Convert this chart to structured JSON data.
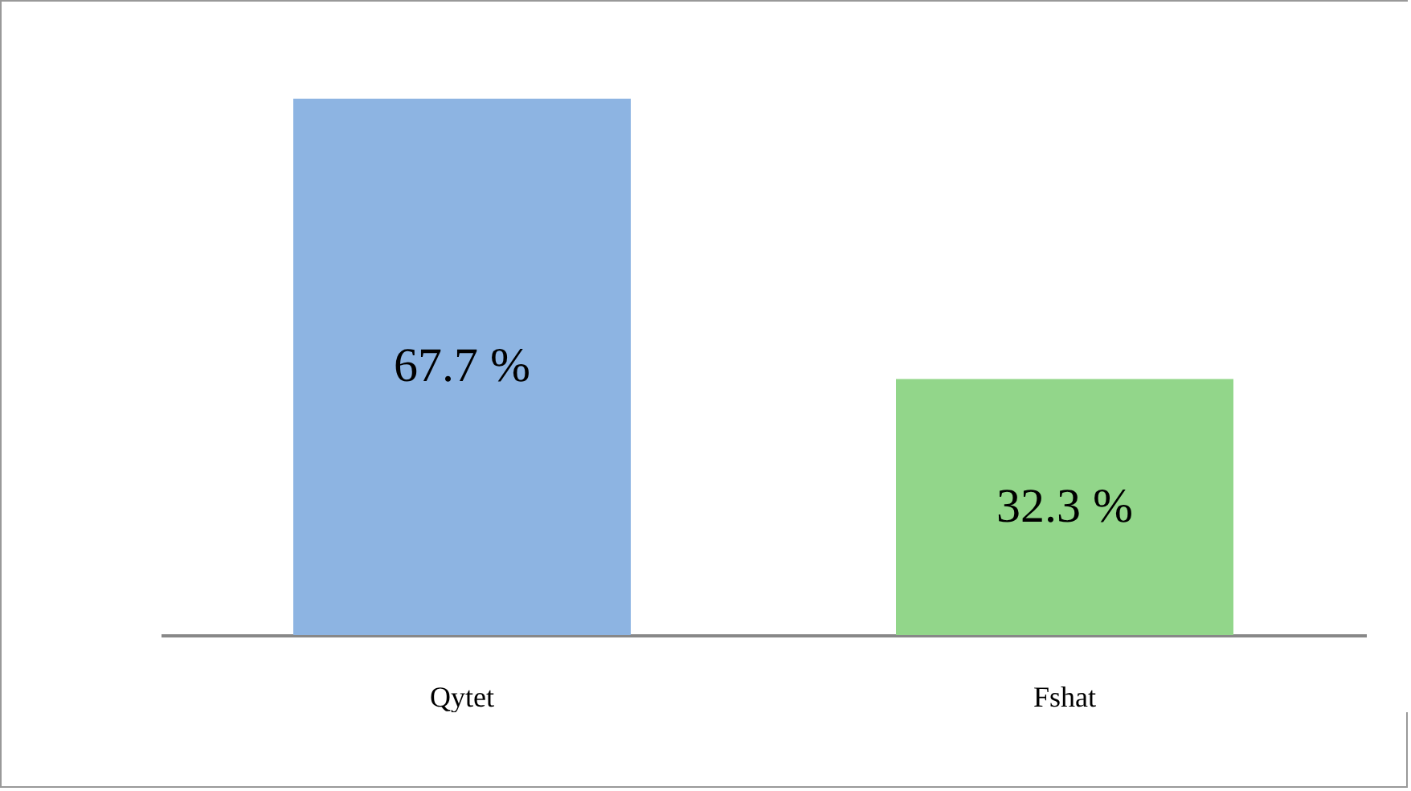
{
  "chart_data": {
    "type": "bar",
    "categories": [
      "Qytet",
      "Fshat"
    ],
    "values": [
      67.7,
      32.3
    ],
    "colors": [
      "#8db4e2",
      "#92d68a"
    ],
    "value_labels": [
      "67.7 %",
      "32.3 %"
    ]
  }
}
